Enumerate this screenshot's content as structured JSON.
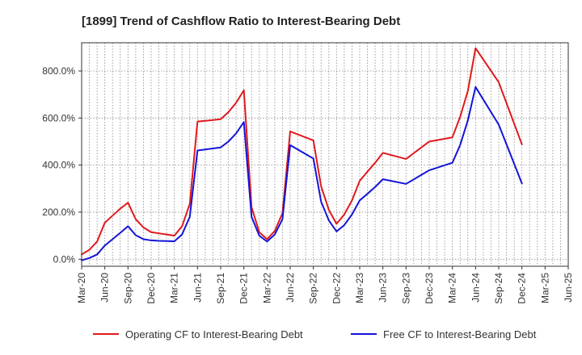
{
  "chart_data": {
    "type": "line",
    "title": "[1899]  Trend of Cashflow Ratio to Interest-Bearing Debt",
    "xlabel": "",
    "ylabel": "",
    "x_tick_labels": [
      "Mar-20",
      "Jun-20",
      "Sep-20",
      "Dec-20",
      "Mar-21",
      "Jun-21",
      "Sep-21",
      "Dec-21",
      "Mar-22",
      "Jun-22",
      "Sep-22",
      "Dec-22",
      "Mar-23",
      "Jun-23",
      "Sep-23",
      "Dec-23",
      "Mar-24",
      "Jun-24",
      "Sep-24",
      "Dec-24",
      "Mar-25",
      "Jun-25"
    ],
    "y_tick_labels": [
      "0.0%",
      "200.0%",
      "400.0%",
      "600.0%",
      "800.0%"
    ],
    "y_ticks": [
      0,
      200,
      400,
      600,
      800
    ],
    "ylim": [
      -30,
      920
    ],
    "x_range_months": [
      0,
      63
    ],
    "grid": true,
    "legend_position": "bottom",
    "series": [
      {
        "name": "Operating CF to Interest-Bearing Debt",
        "color": "#e0191c",
        "points": [
          [
            0,
            20
          ],
          [
            1,
            40
          ],
          [
            2,
            75
          ],
          [
            3,
            155
          ],
          [
            4,
            185
          ],
          [
            5,
            215
          ],
          [
            6,
            240
          ],
          [
            7,
            170
          ],
          [
            8,
            135
          ],
          [
            9,
            115
          ],
          [
            10,
            110
          ],
          [
            11,
            105
          ],
          [
            12,
            100
          ],
          [
            13,
            140
          ],
          [
            14,
            235
          ],
          [
            15,
            585
          ],
          [
            18,
            595
          ],
          [
            19,
            625
          ],
          [
            20,
            665
          ],
          [
            21,
            718
          ],
          [
            22,
            220
          ],
          [
            23,
            115
          ],
          [
            24,
            85
          ],
          [
            25,
            120
          ],
          [
            26,
            195
          ],
          [
            27,
            543
          ],
          [
            30,
            505
          ],
          [
            31,
            310
          ],
          [
            32,
            210
          ],
          [
            33,
            150
          ],
          [
            34,
            190
          ],
          [
            35,
            250
          ],
          [
            36,
            333
          ],
          [
            37,
            372
          ],
          [
            38,
            410
          ],
          [
            39,
            452
          ],
          [
            42,
            426
          ],
          [
            45,
            500
          ],
          [
            48,
            518
          ],
          [
            49,
            605
          ],
          [
            50,
            715
          ],
          [
            51,
            897
          ],
          [
            54,
            752
          ],
          [
            57,
            488
          ]
        ]
      },
      {
        "name": "Free CF to Interest-Bearing Debt",
        "color": "#1414d8",
        "points": [
          [
            0,
            -5
          ],
          [
            1,
            5
          ],
          [
            2,
            20
          ],
          [
            3,
            58
          ],
          [
            4,
            85
          ],
          [
            5,
            112
          ],
          [
            6,
            140
          ],
          [
            7,
            102
          ],
          [
            8,
            85
          ],
          [
            9,
            80
          ],
          [
            10,
            78
          ],
          [
            11,
            77
          ],
          [
            12,
            76
          ],
          [
            13,
            105
          ],
          [
            14,
            180
          ],
          [
            15,
            462
          ],
          [
            18,
            475
          ],
          [
            19,
            500
          ],
          [
            20,
            535
          ],
          [
            21,
            583
          ],
          [
            22,
            180
          ],
          [
            23,
            100
          ],
          [
            24,
            75
          ],
          [
            25,
            105
          ],
          [
            26,
            170
          ],
          [
            27,
            485
          ],
          [
            30,
            428
          ],
          [
            31,
            245
          ],
          [
            32,
            165
          ],
          [
            33,
            118
          ],
          [
            34,
            145
          ],
          [
            35,
            190
          ],
          [
            36,
            250
          ],
          [
            37,
            278
          ],
          [
            38,
            307
          ],
          [
            39,
            340
          ],
          [
            42,
            320
          ],
          [
            45,
            378
          ],
          [
            48,
            410
          ],
          [
            49,
            485
          ],
          [
            50,
            590
          ],
          [
            51,
            732
          ],
          [
            54,
            572
          ],
          [
            57,
            322
          ]
        ]
      }
    ]
  }
}
